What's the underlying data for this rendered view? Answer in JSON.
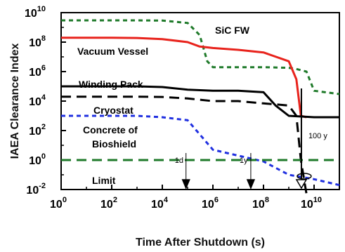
{
  "chart_data": {
    "type": "line",
    "xlabel": "Time After Shutdown (s)",
    "ylabel": "IAEA Clearance Index",
    "xscale": "log",
    "yscale": "log",
    "xlim": [
      1,
      100000000000.0
    ],
    "ylim": [
      0.01,
      10000000000.0
    ],
    "x_ticks": [
      {
        "base": "10",
        "exp": "0"
      },
      {
        "base": "10",
        "exp": "2"
      },
      {
        "base": "10",
        "exp": "4"
      },
      {
        "base": "10",
        "exp": "6"
      },
      {
        "base": "10",
        "exp": "8"
      },
      {
        "base": "10",
        "exp": "10"
      }
    ],
    "y_ticks": [
      {
        "base": "10",
        "exp": "-2"
      },
      {
        "base": "10",
        "exp": "0"
      },
      {
        "base": "10",
        "exp": "2"
      },
      {
        "base": "10",
        "exp": "4"
      },
      {
        "base": "10",
        "exp": "6"
      },
      {
        "base": "10",
        "exp": "8"
      },
      {
        "base": "10",
        "exp": "10"
      }
    ],
    "series": [
      {
        "name": "SiC FW",
        "color": "#1f7a2a",
        "dash": "short-dash",
        "x": [
          1,
          1000.0,
          10000.0,
          100000.0,
          300000.0,
          600000.0,
          1000000.0,
          10000000.0,
          100000000.0,
          1000000000.0,
          2000000000.0,
          5000000000.0,
          10000000000.0,
          100000000000.0
        ],
        "y": [
          3000000000.0,
          3000000000.0,
          2900000000.0,
          2000000000.0,
          300000000.0,
          5000000.0,
          2000000.0,
          2000000.0,
          2000000.0,
          1800000.0,
          1500000.0,
          1000000.0,
          50000.0,
          30000.0
        ]
      },
      {
        "name": "Vacuum Vessel",
        "color": "#e8231c",
        "dash": "solid",
        "x": [
          1,
          100.0,
          1000.0,
          10000.0,
          100000.0,
          300000.0,
          1000000.0,
          10000000.0,
          100000000.0,
          1000000000.0,
          2000000000.0,
          3000000000.0,
          5000000000.0
        ],
        "y": [
          200000000.0,
          200000000.0,
          190000000.0,
          160000000.0,
          100000000.0,
          50000000.0,
          40000000.0,
          30000000.0,
          20000000.0,
          5000000.0,
          300000.0,
          1000.0,
          800.0
        ]
      },
      {
        "name": "Winding Pack",
        "color": "#000000",
        "dash": "solid",
        "x": [
          1,
          1000.0,
          10000.0,
          100000.0,
          1000000.0,
          10000000.0,
          100000000.0,
          300000000.0,
          1000000000.0,
          10000000000.0,
          100000000000.0
        ],
        "y": [
          100000.0,
          100000.0,
          90000.0,
          60000.0,
          50000.0,
          50000.0,
          40000.0,
          5000.0,
          1000.0,
          800.0,
          800.0
        ]
      },
      {
        "name": "Cryostat",
        "color": "#000000",
        "dash": "long-dash",
        "x": [
          1,
          1000.0,
          10000.0,
          100000.0,
          1000000.0,
          10000000.0,
          100000000.0,
          1000000000.0,
          2000000000.0,
          3000000000.0,
          4000000000.0,
          5000000000.0
        ],
        "y": [
          20000.0,
          20000.0,
          19000.0,
          15000.0,
          10000.0,
          10000.0,
          7000.0,
          5000.0,
          1000.0,
          1,
          0.05,
          0.005
        ]
      },
      {
        "name": "Concrete of Bioshield",
        "color": "#2030e0",
        "dash": "short-dash",
        "x": [
          1,
          1000.0,
          10000.0,
          100000.0,
          1000000.0,
          10000000.0,
          100000000.0,
          1000000000.0,
          10000000000.0,
          100000000000.0
        ],
        "y": [
          1000.0,
          1000.0,
          800.0,
          500.0,
          5.0,
          2.0,
          0.8,
          0.1,
          0.05,
          0.02
        ]
      },
      {
        "name": "Limit",
        "color": "#1f7a2a",
        "dash": "long-dash",
        "x": [
          1,
          100000000000.0
        ],
        "y": [
          1,
          1
        ]
      }
    ],
    "annotations": [
      {
        "text": "1d",
        "x": 86400.0
      },
      {
        "text": "1y",
        "x": 31500000.0
      },
      {
        "text": "100 y",
        "x": 3150000000.0
      }
    ],
    "grid": false,
    "legend": "inline labels"
  }
}
